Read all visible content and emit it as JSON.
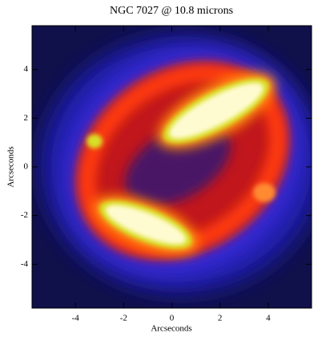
{
  "chart_data": {
    "type": "image",
    "title": "NGC 7027 @ 10.8 microns",
    "x_label": "Arcseconds",
    "y_label": "Arcseconds",
    "xlim": [
      -5.8,
      5.8
    ],
    "ylim": [
      -5.8,
      5.8
    ],
    "xticks": [
      -4,
      -2,
      0,
      2,
      4
    ],
    "yticks": [
      -4,
      -2,
      0,
      2,
      4
    ]
  }
}
